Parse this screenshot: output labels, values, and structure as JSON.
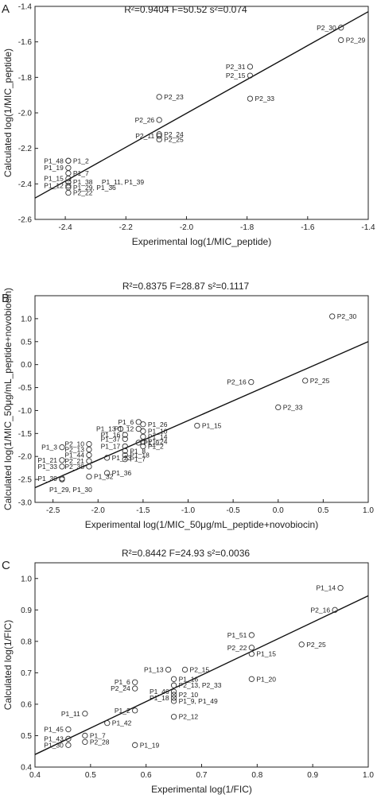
{
  "figure": {
    "panels": [
      "A",
      "B",
      "C"
    ]
  },
  "chart_data": [
    {
      "panel": "A",
      "type": "scatter",
      "stats": "R²=0.9404   F=50.52   s²=0.074",
      "xlabel": "Experimental log(1/MIC_peptide)",
      "ylabel": "Calculated log(1/MIC_peptide)",
      "xlim": [
        -2.5,
        -1.4
      ],
      "ylim": [
        -2.6,
        -1.4
      ],
      "xticks": [
        -2.4,
        -2.2,
        -2.0,
        -1.8,
        -1.6,
        -1.4
      ],
      "yticks": [
        -2.6,
        -2.4,
        -2.2,
        -2.0,
        -1.8,
        -1.6,
        -1.4
      ],
      "fit_line": [
        [
          -2.5,
          -2.48
        ],
        [
          -1.4,
          -1.43
        ]
      ],
      "points": [
        {
          "label": "P2_30",
          "x": -1.49,
          "y": -1.52,
          "lp": "left"
        },
        {
          "label": "P2_29",
          "x": -1.49,
          "y": -1.59,
          "lp": "right"
        },
        {
          "label": "P2_31",
          "x": -1.79,
          "y": -1.74,
          "lp": "left"
        },
        {
          "label": "P2_15",
          "x": -1.79,
          "y": -1.79,
          "lp": "left"
        },
        {
          "label": "P2_33",
          "x": -1.79,
          "y": -1.92,
          "lp": "right"
        },
        {
          "label": "P2_23",
          "x": -2.09,
          "y": -1.91,
          "lp": "right"
        },
        {
          "label": "P2_26",
          "x": -2.09,
          "y": -2.04,
          "lp": "left"
        },
        {
          "label": "P2_11",
          "x": -2.09,
          "y": -2.13,
          "lp": "left"
        },
        {
          "label": "P2_24",
          "x": -2.09,
          "y": -2.12,
          "lp": "right"
        },
        {
          "label": "P2_25",
          "x": -2.09,
          "y": -2.15,
          "lp": "right"
        },
        {
          "label": "P1_48",
          "x": -2.39,
          "y": -2.27,
          "lp": "left"
        },
        {
          "label": "P1_2",
          "x": -2.39,
          "y": -2.27,
          "lp": "right"
        },
        {
          "label": "P1_19",
          "x": -2.39,
          "y": -2.31,
          "lp": "left"
        },
        {
          "label": "P1_7",
          "x": -2.39,
          "y": -2.34,
          "lp": "right"
        },
        {
          "label": "P1_15",
          "x": -2.39,
          "y": -2.37,
          "lp": "left"
        },
        {
          "label": "P1_38",
          "x": -2.39,
          "y": -2.39,
          "lp": "right"
        },
        {
          "label": "P1_11, P1_39",
          "x": -2.39,
          "y": -2.39,
          "lp": "farright"
        },
        {
          "label": "P1_12",
          "x": -2.39,
          "y": -2.41,
          "lp": "left"
        },
        {
          "label": "P1_29, P1_36",
          "x": -2.39,
          "y": -2.42,
          "lp": "right"
        },
        {
          "label": "P2_22",
          "x": -2.39,
          "y": -2.45,
          "lp": "right"
        }
      ]
    },
    {
      "panel": "B",
      "type": "scatter",
      "stats": "R²=0.8375   F=28.87   s²=0.1117",
      "xlabel": "Experimental log(1/MIC_50μg/mL_peptide+novobiocin)",
      "ylabel": "Calculated log(1/MIC_50μg/mL_peptide+novobiocin)",
      "xlim": [
        -2.7,
        1.0
      ],
      "ylim": [
        -3.0,
        1.5
      ],
      "xticks": [
        -2.5,
        -2.0,
        -1.5,
        -1.0,
        -0.5,
        0.0,
        0.5,
        1.0
      ],
      "yticks": [
        -3.0,
        -2.5,
        -2.0,
        -1.5,
        -1.0,
        -0.5,
        0.0,
        0.5,
        1.0
      ],
      "fit_line": [
        [
          -2.7,
          -2.68
        ],
        [
          1.0,
          0.5
        ]
      ],
      "points": [
        {
          "label": "P2_30",
          "x": 0.6,
          "y": 1.05,
          "lp": "right"
        },
        {
          "label": "P2_16",
          "x": -0.3,
          "y": -0.38,
          "lp": "left"
        },
        {
          "label": "P2_25",
          "x": 0.3,
          "y": -0.35,
          "lp": "right"
        },
        {
          "label": "P2_33",
          "x": 0.0,
          "y": -0.93,
          "lp": "right"
        },
        {
          "label": "P1_15",
          "x": -0.9,
          "y": -1.33,
          "lp": "right"
        },
        {
          "label": "P1_6",
          "x": -1.55,
          "y": -1.25,
          "lp": "left"
        },
        {
          "label": "P1_26",
          "x": -1.5,
          "y": -1.3,
          "lp": "right"
        },
        {
          "label": "P1_13",
          "x": -1.75,
          "y": -1.4,
          "lp": "left"
        },
        {
          "label": "P1_12",
          "x": -1.55,
          "y": -1.4,
          "lp": "left"
        },
        {
          "label": "P1_10",
          "x": -1.5,
          "y": -1.45,
          "lp": "right"
        },
        {
          "label": "P1_16",
          "x": -1.7,
          "y": -1.53,
          "lp": "left"
        },
        {
          "label": "P1_14",
          "x": -1.5,
          "y": -1.57,
          "lp": "right"
        },
        {
          "label": "P1_37",
          "x": -1.7,
          "y": -1.62,
          "lp": "left"
        },
        {
          "label": "P1_9",
          "x": -1.55,
          "y": -1.7,
          "lp": "right"
        },
        {
          "label": "P1_24",
          "x": -1.5,
          "y": -1.68,
          "lp": "right"
        },
        {
          "label": "P1_17",
          "x": -1.7,
          "y": -1.78,
          "lp": "left"
        },
        {
          "label": "P1_2",
          "x": -1.5,
          "y": -1.78,
          "lp": "right"
        },
        {
          "label": "P1_8",
          "x": -1.7,
          "y": -1.88,
          "lp": "right"
        },
        {
          "label": "P1_3",
          "x": -2.4,
          "y": -1.8,
          "lp": "left"
        },
        {
          "label": "P2_10",
          "x": -2.1,
          "y": -1.73,
          "lp": "left"
        },
        {
          "label": "P2_13",
          "x": -2.1,
          "y": -1.85,
          "lp": "left"
        },
        {
          "label": "P1_18",
          "x": -1.7,
          "y": -1.97,
          "lp": "right"
        },
        {
          "label": "P1_21",
          "x": -2.4,
          "y": -2.08,
          "lp": "left"
        },
        {
          "label": "P1_44",
          "x": -2.1,
          "y": -1.97,
          "lp": "left"
        },
        {
          "label": "P1_23",
          "x": -1.9,
          "y": -2.03,
          "lp": "right"
        },
        {
          "label": "P1_7",
          "x": -1.7,
          "y": -2.06,
          "lp": "right"
        },
        {
          "label": "P2_21",
          "x": -2.1,
          "y": -2.1,
          "lp": "left"
        },
        {
          "label": "P1_33",
          "x": -2.4,
          "y": -2.22,
          "lp": "left"
        },
        {
          "label": "P2_38",
          "x": -2.1,
          "y": -2.22,
          "lp": "left"
        },
        {
          "label": "P1_36",
          "x": -1.9,
          "y": -2.36,
          "lp": "right"
        },
        {
          "label": "P1_39",
          "x": -2.4,
          "y": -2.48,
          "lp": "left"
        },
        {
          "label": "P1_32",
          "x": -2.1,
          "y": -2.44,
          "lp": "right"
        },
        {
          "label": "P1_29, P1_30",
          "x": -2.4,
          "y": -2.5,
          "lp": "below"
        }
      ]
    },
    {
      "panel": "C",
      "type": "scatter",
      "stats": "R²=0.8442   F=24.93   s²=0.0036",
      "xlabel": "Experimental log(1/FIC)",
      "ylabel": "Calculated log(1/FIC)",
      "xlim": [
        0.4,
        1.0
      ],
      "ylim": [
        0.4,
        1.05
      ],
      "xticks": [
        0.4,
        0.5,
        0.6,
        0.7,
        0.8,
        0.9,
        1.0
      ],
      "yticks": [
        0.4,
        0.5,
        0.6,
        0.7,
        0.8,
        0.9,
        1.0
      ],
      "fit_line": [
        [
          0.4,
          0.44
        ],
        [
          1.0,
          0.945
        ]
      ],
      "points": [
        {
          "label": "P1_14",
          "x": 0.95,
          "y": 0.97,
          "lp": "left"
        },
        {
          "label": "P2_16",
          "x": 0.94,
          "y": 0.9,
          "lp": "left"
        },
        {
          "label": "P1_51",
          "x": 0.79,
          "y": 0.82,
          "lp": "left"
        },
        {
          "label": "P2_22",
          "x": 0.79,
          "y": 0.78,
          "lp": "left"
        },
        {
          "label": "P2_25",
          "x": 0.88,
          "y": 0.79,
          "lp": "right"
        },
        {
          "label": "P1_15",
          "x": 0.79,
          "y": 0.76,
          "lp": "right"
        },
        {
          "label": "P1_13",
          "x": 0.64,
          "y": 0.71,
          "lp": "left"
        },
        {
          "label": "P2_15",
          "x": 0.67,
          "y": 0.71,
          "lp": "right"
        },
        {
          "label": "P1_20",
          "x": 0.79,
          "y": 0.68,
          "lp": "right"
        },
        {
          "label": "P1_16",
          "x": 0.65,
          "y": 0.68,
          "lp": "right"
        },
        {
          "label": "P1_6",
          "x": 0.58,
          "y": 0.67,
          "lp": "left"
        },
        {
          "label": "P2_24",
          "x": 0.58,
          "y": 0.65,
          "lp": "left"
        },
        {
          "label": "P2_13, P2_33",
          "x": 0.65,
          "y": 0.66,
          "lp": "right"
        },
        {
          "label": "P1_46",
          "x": 0.65,
          "y": 0.64,
          "lp": "left"
        },
        {
          "label": "P2_10",
          "x": 0.65,
          "y": 0.63,
          "lp": "right"
        },
        {
          "label": "P1_18",
          "x": 0.65,
          "y": 0.62,
          "lp": "left"
        },
        {
          "label": "P1_9, P1_49",
          "x": 0.65,
          "y": 0.61,
          "lp": "right"
        },
        {
          "label": "P1_2",
          "x": 0.58,
          "y": 0.58,
          "lp": "left"
        },
        {
          "label": "P2_12",
          "x": 0.65,
          "y": 0.56,
          "lp": "right"
        },
        {
          "label": "P1_11",
          "x": 0.49,
          "y": 0.57,
          "lp": "left"
        },
        {
          "label": "P1_42",
          "x": 0.53,
          "y": 0.54,
          "lp": "right"
        },
        {
          "label": "P1_45",
          "x": 0.46,
          "y": 0.52,
          "lp": "left"
        },
        {
          "label": "P1_7",
          "x": 0.49,
          "y": 0.5,
          "lp": "right"
        },
        {
          "label": "P1_43",
          "x": 0.46,
          "y": 0.49,
          "lp": "left"
        },
        {
          "label": "P2_28",
          "x": 0.49,
          "y": 0.48,
          "lp": "right"
        },
        {
          "label": "P1_30",
          "x": 0.46,
          "y": 0.47,
          "lp": "left"
        },
        {
          "label": "P1_19",
          "x": 0.58,
          "y": 0.47,
          "lp": "right"
        }
      ]
    }
  ]
}
